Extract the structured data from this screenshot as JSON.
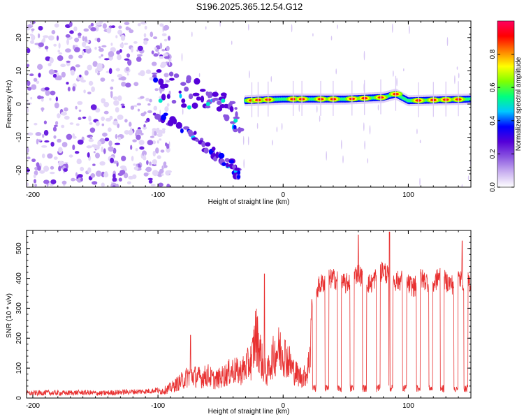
{
  "title": "S196.2025.365.12.54.G12",
  "chart_data": [
    {
      "type": "heatmap",
      "name": "spectrogram",
      "xlabel": "Height of straight line (km)",
      "ylabel": "Frequency (Hz)",
      "xlim": [
        -205,
        150
      ],
      "ylim": [
        -25,
        25
      ],
      "xticks": [
        -200,
        -100,
        0,
        100
      ],
      "yticks": [
        -20,
        -10,
        0,
        10,
        20
      ],
      "colorbar": {
        "label": "Normalized spectral amplitude",
        "range": [
          0,
          1
        ],
        "ticks": [
          0,
          0.2,
          0.4,
          0.6,
          0.8
        ],
        "tick_labels": [
          "0.0",
          "0.2",
          "0.4",
          "0.6",
          "0.8"
        ],
        "colors": [
          "#ffffff",
          "#c9b0f0",
          "#8a55e0",
          "#5500d8",
          "#0000ff",
          "#00c8ff",
          "#00ff80",
          "#80ff00",
          "#ffff00",
          "#ff8000",
          "#ff0000",
          "#ff0060"
        ]
      },
      "features": {
        "noise_region_x": [
          -205,
          -100
        ],
        "onset_x": -103,
        "upper_branch": [
          [
            -103,
            6
          ],
          [
            -80,
            4
          ],
          [
            -60,
            2
          ],
          [
            -45,
            -2
          ],
          [
            -35,
            -5
          ]
        ],
        "lower_branch": [
          [
            -100,
            -3
          ],
          [
            -75,
            -8
          ],
          [
            -55,
            -15
          ],
          [
            -40,
            -19
          ],
          [
            -35,
            -21
          ]
        ],
        "steady_freq_band": [
          [
            -30,
            1
          ],
          [
            0,
            1.5
          ],
          [
            50,
            1.5
          ],
          [
            80,
            2
          ],
          [
            90,
            3
          ],
          [
            100,
            1
          ],
          [
            150,
            1.5
          ]
        ],
        "hot_spots_x": [
          -25,
          -20,
          -12,
          8,
          15,
          30,
          40,
          55,
          65,
          78,
          90,
          108,
          120,
          130,
          140
        ]
      }
    },
    {
      "type": "line",
      "name": "snr",
      "xlabel": "Height of straight line (km)",
      "ylabel": "SNR (10 * v/v)",
      "xlim": [
        -205,
        150
      ],
      "ylim": [
        0,
        560
      ],
      "xticks": [
        -200,
        -100,
        0,
        100
      ],
      "yticks": [
        0,
        100,
        200,
        300,
        400,
        500
      ],
      "color": "#e83030",
      "series": [
        {
          "name": "SNR",
          "x": [
            -205,
            -190,
            -175,
            -160,
            -145,
            -130,
            -115,
            -105,
            -100,
            -95,
            -90,
            -85,
            -80,
            -75,
            -70,
            -65,
            -60,
            -55,
            -50,
            -45,
            -40,
            -35,
            -30,
            -25,
            -22,
            -19,
            -16,
            -13,
            -10,
            -7,
            -4,
            0,
            4,
            8,
            12,
            16,
            19,
            21,
            23,
            26,
            30,
            35,
            40,
            45,
            50,
            55,
            60,
            65,
            70,
            75,
            80,
            85,
            90,
            95,
            100,
            105,
            110,
            115,
            120,
            125,
            130,
            135,
            140,
            145,
            150
          ],
          "values": [
            12,
            14,
            13,
            15,
            12,
            16,
            18,
            20,
            25,
            30,
            40,
            55,
            70,
            90,
            85,
            80,
            90,
            70,
            80,
            95,
            110,
            100,
            120,
            150,
            250,
            200,
            120,
            90,
            140,
            170,
            190,
            180,
            150,
            110,
            90,
            80,
            100,
            150,
            320,
            360,
            380,
            395,
            400,
            390,
            380,
            400,
            420,
            390,
            380,
            410,
            430,
            400,
            390,
            395,
            380,
            370,
            400,
            390,
            380,
            410,
            390,
            380,
            400,
            390,
            385
          ]
        }
      ],
      "dropouts_x": [
        25,
        35,
        45,
        55,
        65,
        76,
        86,
        97,
        108,
        118,
        127,
        138,
        146
      ],
      "peaks": [
        [
          -74,
          210
        ],
        [
          -15,
          415
        ],
        [
          60,
          545
        ],
        [
          85,
          555
        ],
        [
          143,
          525
        ]
      ]
    }
  ]
}
